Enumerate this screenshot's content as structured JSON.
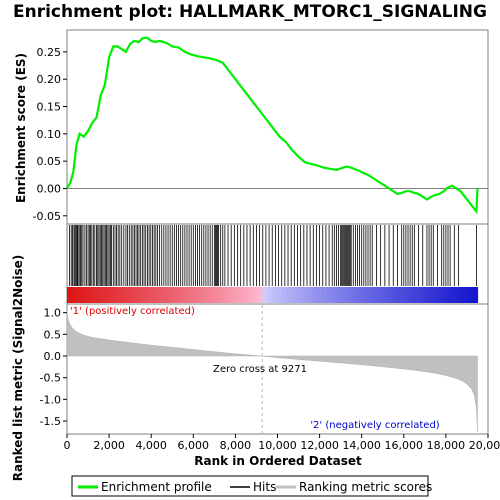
{
  "chart_data": {
    "type": "line",
    "title": "Enrichment plot: HALLMARK_MTORC1_SIGNALING",
    "top_panel": {
      "ylabel": "Enrichment score (ES)",
      "ylim": [
        -0.065,
        0.29
      ],
      "yticks": [
        -0.05,
        0.0,
        0.05,
        0.1,
        0.15,
        0.2,
        0.25
      ],
      "ytick_labels": [
        "-0.05",
        "0.00",
        "0.05",
        "0.10",
        "0.15",
        "0.20",
        "0.25"
      ],
      "series": [
        {
          "name": "Enrichment profile",
          "color": "#00ee00",
          "x": [
            0,
            150,
            300,
            450,
            600,
            800,
            1000,
            1200,
            1400,
            1600,
            1800,
            2000,
            2200,
            2400,
            2600,
            2800,
            3000,
            3200,
            3400,
            3600,
            3800,
            4000,
            4200,
            4400,
            4600,
            4800,
            5000,
            5300,
            5600,
            5900,
            6200,
            6500,
            6800,
            7100,
            7400,
            7700,
            8000,
            8300,
            8600,
            8900,
            9200,
            9500,
            9800,
            10100,
            10400,
            10700,
            11000,
            11300,
            11600,
            11900,
            12200,
            12500,
            12800,
            13100,
            13300,
            13500,
            13700,
            13900,
            14100,
            14300,
            14500,
            14700,
            14900,
            15100,
            15300,
            15500,
            15700,
            15900,
            16100,
            16300,
            16500,
            16700,
            16900,
            17100,
            17300,
            17500,
            17700,
            17900,
            18100,
            18300,
            18500,
            18700,
            18900,
            19100,
            19300,
            19450,
            19500
          ],
          "y": [
            0.0,
            0.01,
            0.03,
            0.08,
            0.1,
            0.095,
            0.105,
            0.12,
            0.13,
            0.17,
            0.19,
            0.24,
            0.26,
            0.26,
            0.255,
            0.25,
            0.265,
            0.27,
            0.268,
            0.275,
            0.276,
            0.27,
            0.268,
            0.27,
            0.268,
            0.265,
            0.26,
            0.258,
            0.25,
            0.245,
            0.242,
            0.24,
            0.238,
            0.235,
            0.23,
            0.215,
            0.2,
            0.185,
            0.17,
            0.155,
            0.14,
            0.125,
            0.11,
            0.095,
            0.085,
            0.07,
            0.058,
            0.048,
            0.045,
            0.042,
            0.038,
            0.036,
            0.034,
            0.038,
            0.04,
            0.038,
            0.035,
            0.032,
            0.028,
            0.025,
            0.02,
            0.015,
            0.01,
            0.005,
            0.0,
            -0.005,
            -0.01,
            -0.008,
            -0.005,
            -0.005,
            -0.008,
            -0.01,
            -0.015,
            -0.02,
            -0.015,
            -0.012,
            -0.01,
            -0.005,
            0.002,
            0.005,
            0.0,
            -0.005,
            -0.015,
            -0.025,
            -0.035,
            -0.042,
            0.0
          ]
        }
      ],
      "zero_line": true
    },
    "hits_panel": {
      "series_name": "Hits",
      "positions": [
        120,
        200,
        260,
        330,
        380,
        430,
        480,
        520,
        580,
        640,
        700,
        760,
        850,
        920,
        1000,
        1060,
        1120,
        1180,
        1250,
        1320,
        1400,
        1460,
        1520,
        1580,
        1640,
        1700,
        1760,
        1820,
        1880,
        1940,
        2000,
        2060,
        2120,
        2200,
        2280,
        2350,
        2430,
        2510,
        2600,
        2700,
        2800,
        2880,
        2960,
        3050,
        3130,
        3200,
        3280,
        3350,
        3420,
        3500,
        3580,
        3660,
        3740,
        3820,
        3900,
        3980,
        4060,
        4140,
        4220,
        4300,
        4400,
        4500,
        4600,
        4700,
        4800,
        4900,
        5000,
        5100,
        5200,
        5300,
        5400,
        5500,
        5600,
        5700,
        5800,
        5900,
        6000,
        6100,
        6200,
        6300,
        6400,
        6500,
        6600,
        6700,
        6800,
        6900,
        7000,
        7050,
        7100,
        7150,
        7200,
        7300,
        7400,
        7500,
        7650,
        7800,
        7950,
        8100,
        8250,
        8400,
        8550,
        8700,
        8850,
        9000,
        9150,
        9300,
        9450,
        9600,
        9750,
        9900,
        10050,
        10200,
        10350,
        10500,
        10650,
        10800,
        10950,
        11100,
        11250,
        11400,
        11550,
        11700,
        11850,
        12000,
        12150,
        12300,
        12450,
        12600,
        12700,
        12800,
        12900,
        13000,
        13050,
        13100,
        13150,
        13200,
        13250,
        13300,
        13350,
        13400,
        13450,
        13500,
        13600,
        13700,
        13800,
        13900,
        14000,
        14100,
        14200,
        14300,
        14400,
        14500,
        14700,
        14900,
        15100,
        15300,
        15500,
        15700,
        15900,
        16000,
        16100,
        16200,
        16300,
        16400,
        16500,
        16700,
        16900,
        17100,
        17200,
        17300,
        17400,
        17600,
        17800,
        17900,
        18000,
        18100,
        18200,
        18400,
        18600,
        19450
      ]
    },
    "ranked_panel": {
      "ylabel": "Ranked list metric (Signal2Noise)",
      "xlabel": "Rank in Ordered Dataset",
      "xlim": [
        0,
        20000
      ],
      "xticks": [
        0,
        2000,
        4000,
        6000,
        8000,
        10000,
        12000,
        14000,
        16000,
        18000,
        20000
      ],
      "xtick_labels": [
        "0",
        "2,000",
        "4,000",
        "6,000",
        "8,000",
        "10,000",
        "12,000",
        "14,000",
        "16,000",
        "18,000",
        "20,000"
      ],
      "ylim": [
        -1.8,
        1.2
      ],
      "yticks": [
        -1.5,
        -1.0,
        -0.5,
        0.0,
        0.5,
        1.0
      ],
      "ytick_labels": [
        "-1.5",
        "-1.0",
        "-0.5",
        "0.0",
        "0.5",
        "1.0"
      ],
      "series_name": "Ranking metric scores",
      "x": [
        0,
        50,
        150,
        300,
        500,
        800,
        1200,
        2000,
        3000,
        4000,
        5000,
        6000,
        7000,
        8000,
        9271,
        10000,
        11000,
        12000,
        13000,
        14000,
        15000,
        16000,
        17000,
        17500,
        18000,
        18500,
        18800,
        19000,
        19200,
        19350,
        19450,
        19500
      ],
      "y": [
        1.05,
        0.85,
        0.72,
        0.62,
        0.55,
        0.48,
        0.43,
        0.37,
        0.31,
        0.25,
        0.2,
        0.15,
        0.1,
        0.05,
        0.0,
        -0.04,
        -0.08,
        -0.12,
        -0.16,
        -0.2,
        -0.25,
        -0.3,
        -0.36,
        -0.4,
        -0.45,
        -0.52,
        -0.58,
        -0.65,
        -0.75,
        -0.9,
        -1.2,
        -1.75
      ],
      "zero_cross_label": "Zero cross at 9271",
      "zero_cross_x": 9271,
      "pos_label": "'1' (positively correlated)",
      "neg_label": "'2' (negatively correlated)",
      "pos_color": "#dd0000",
      "neg_color": "#0000cc"
    },
    "legend": {
      "items": [
        {
          "label": "Enrichment profile",
          "color": "#00ee00"
        },
        {
          "label": "Hits",
          "color": "#000000"
        },
        {
          "label": "Ranking metric scores",
          "color": "#c0c0c0"
        }
      ]
    }
  }
}
